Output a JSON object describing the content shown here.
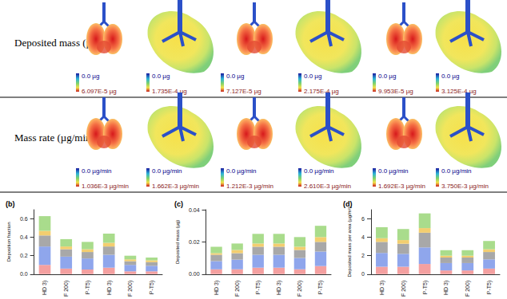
{
  "panel_a": {
    "rows": [
      {
        "label": "Deposited mass (µg)",
        "colorbars": [
          {
            "min": "0.0 µg",
            "max": "6.097E-5 µg"
          },
          {
            "min": "0.0 µg",
            "max": "1.735E-4 µg"
          },
          {
            "min": "0.0 µg",
            "max": "7.127E-5 µg"
          },
          {
            "min": "0.0 µg",
            "max": "2.175E-4 µg"
          },
          {
            "min": "0.0 µg",
            "max": "9.953E-5 µg"
          },
          {
            "min": "0.0 µg",
            "max": "3.125E-4 µg"
          }
        ]
      },
      {
        "label": "Mass rate (µg/min)",
        "colorbars": [
          {
            "min": "0.0 µg/min",
            "max": "1.036E-3 µg/min"
          },
          {
            "min": "0.0 µg/min",
            "max": "1.662E-3 µg/min"
          },
          {
            "min": "0.0 µg/min",
            "max": "1.212E-3 µg/min"
          },
          {
            "min": "0.0 µg/min",
            "max": "2.610E-3 µg/min"
          },
          {
            "min": "0.0 µg/min",
            "max": "1.692E-3 µg/min"
          },
          {
            "min": "0.0 µg/min",
            "max": "3.750E-3 µg/min"
          }
        ]
      }
    ]
  },
  "chart_data": [
    {
      "type": "bar",
      "title": "(b)",
      "stacked": true,
      "ylabel": "Deposition fraction",
      "categories": [
        "HD 3)",
        "F 200)",
        "P-T5)",
        "HD 3)",
        "F 200)",
        "P-T5)"
      ],
      "ylim": [
        0,
        0.7
      ],
      "yticks": [
        {
          "value": 0,
          "label": "0.0"
        },
        0.2,
        0.4,
        0.6
      ],
      "series": [
        {
          "color": "#f4a0a0",
          "values": [
            0.1,
            0.06,
            0.05,
            0.07,
            0.03,
            0.03
          ]
        },
        {
          "color": "#8fa6ec",
          "values": [
            0.2,
            0.13,
            0.12,
            0.14,
            0.07,
            0.06
          ]
        },
        {
          "color": "#a8a8a8",
          "values": [
            0.12,
            0.08,
            0.07,
            0.09,
            0.04,
            0.04
          ]
        },
        {
          "color": "#f3ce6f",
          "values": [
            0.05,
            0.03,
            0.03,
            0.04,
            0.02,
            0.02
          ]
        },
        {
          "color": "#a9dc8c",
          "values": [
            0.16,
            0.08,
            0.08,
            0.1,
            0.04,
            0.03
          ]
        }
      ]
    },
    {
      "type": "bar",
      "title": "(c)",
      "stacked": true,
      "ylabel": "Deposited mass (µg)",
      "categories": [
        "HD 3)",
        "F 200)",
        "P-T5)",
        "HD 3)",
        "F 200)",
        "P-T5)"
      ],
      "ylim": [
        0,
        0.04
      ],
      "yticks": [
        {
          "value": 0,
          "label": "0.00"
        },
        {
          "value": 0.02,
          "label": "0.02"
        },
        {
          "value": 0.04,
          "label": "0.04"
        }
      ],
      "series": [
        {
          "color": "#f4a0a0",
          "values": [
            0.003,
            0.003,
            0.004,
            0.004,
            0.003,
            0.005
          ]
        },
        {
          "color": "#8fa6ec",
          "values": [
            0.005,
            0.006,
            0.008,
            0.008,
            0.007,
            0.009
          ]
        },
        {
          "color": "#a8a8a8",
          "values": [
            0.004,
            0.004,
            0.005,
            0.005,
            0.005,
            0.006
          ]
        },
        {
          "color": "#f3ce6f",
          "values": [
            0.001,
            0.002,
            0.002,
            0.002,
            0.002,
            0.003
          ]
        },
        {
          "color": "#a9dc8c",
          "values": [
            0.004,
            0.004,
            0.006,
            0.006,
            0.006,
            0.007
          ]
        }
      ]
    },
    {
      "type": "bar",
      "title": "(d)",
      "stacked": true,
      "ylabel": "Deposited mass per area (µg/m²)",
      "categories": [
        "HD 3)",
        "F 200)",
        "P-T5)",
        "HD 3)",
        "F 200)",
        "P-T5)"
      ],
      "ylim": [
        0,
        7
      ],
      "yticks": [
        0,
        2,
        4,
        6
      ],
      "series": [
        {
          "color": "#f4a0a0",
          "values": [
            0.8,
            0.8,
            1.1,
            0.4,
            0.4,
            0.6
          ]
        },
        {
          "color": "#8fa6ec",
          "values": [
            1.5,
            1.4,
            1.8,
            0.8,
            0.8,
            1.0
          ]
        },
        {
          "color": "#a8a8a8",
          "values": [
            1.2,
            1.1,
            1.6,
            0.6,
            0.6,
            0.8
          ]
        },
        {
          "color": "#f3ce6f",
          "values": [
            0.4,
            0.4,
            0.5,
            0.2,
            0.2,
            0.3
          ]
        },
        {
          "color": "#a9dc8c",
          "values": [
            1.2,
            1.2,
            1.6,
            0.6,
            0.6,
            0.9
          ]
        }
      ]
    }
  ]
}
